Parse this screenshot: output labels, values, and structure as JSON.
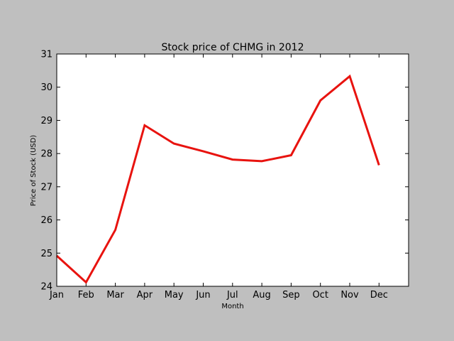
{
  "chart_data": {
    "type": "line",
    "title": "Stock price of CHMG in 2012",
    "xlabel": "Month",
    "ylabel": "Price of Stock (USD)",
    "categories": [
      "Jan",
      "Feb",
      "Mar",
      "Apr",
      "May",
      "Jun",
      "Jul",
      "Aug",
      "Sep",
      "Oct",
      "Nov",
      "Dec"
    ],
    "series": [
      {
        "values": [
          24.92,
          24.12,
          25.7,
          28.85,
          28.3,
          28.07,
          27.82,
          27.77,
          27.95,
          29.6,
          30.33,
          27.65
        ]
      }
    ],
    "ylim": [
      24,
      31
    ],
    "yticks": [
      24,
      25,
      26,
      27,
      28,
      29,
      30,
      31
    ],
    "grid": false,
    "colors": {
      "line": "#e8130f",
      "background": "#bfbfbf",
      "plot_bg": "#ffffff"
    }
  }
}
